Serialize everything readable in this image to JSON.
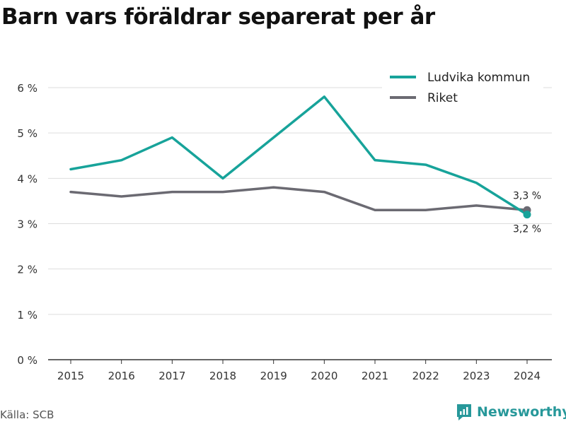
{
  "title": "Barn vars föräldrar separerat per år",
  "source": "Källa: SCB",
  "brand": {
    "name": "Newsworthy",
    "icon": "newsworthy-logo-icon"
  },
  "colors": {
    "ludvika": "#17a39a",
    "riket": "#6b6a72",
    "grid": "#dddddd",
    "brand": "#27989a"
  },
  "chart_data": {
    "type": "line",
    "title": "Barn vars föräldrar separerat per år",
    "xlabel": "",
    "ylabel": "",
    "x": [
      "2015",
      "2016",
      "2017",
      "2018",
      "2019",
      "2020",
      "2021",
      "2022",
      "2023",
      "2024"
    ],
    "ylim": [
      0,
      6
    ],
    "yticks": [
      0,
      1,
      2,
      3,
      4,
      5,
      6
    ],
    "ytick_labels": [
      "0 %",
      "1 %",
      "2 %",
      "3 %",
      "4 %",
      "5 %",
      "6 %"
    ],
    "grid": true,
    "legend": "top-right",
    "series": [
      {
        "name": "Ludvika kommun",
        "color": "#17a39a",
        "values": [
          4.2,
          4.4,
          4.9,
          4.0,
          4.9,
          5.8,
          4.4,
          4.3,
          3.9,
          3.2
        ],
        "end_label": "3,2 %"
      },
      {
        "name": "Riket",
        "color": "#6b6a72",
        "values": [
          3.7,
          3.6,
          3.7,
          3.7,
          3.8,
          3.7,
          3.3,
          3.3,
          3.4,
          3.3
        ],
        "end_label": "3,3 %"
      }
    ]
  }
}
